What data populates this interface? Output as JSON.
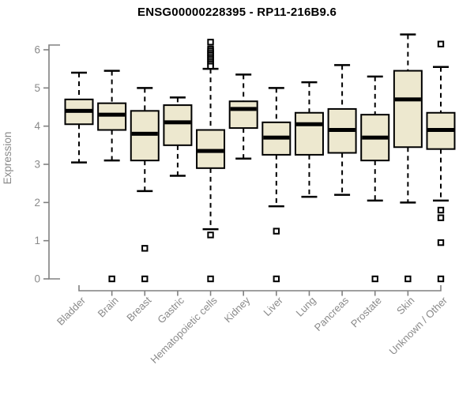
{
  "chart_data": {
    "type": "boxplot",
    "title": "ENSG00000228395 - RP11-216B9.6",
    "ylabel": "Expression",
    "xlabel": "",
    "ylim": [
      0,
      6
    ],
    "yticks": [
      "0",
      "1",
      "2",
      "3",
      "4",
      "5",
      "6"
    ],
    "grid": false,
    "legend": "none",
    "categories": [
      "Bladder",
      "Brain",
      "Breast",
      "Gastric",
      "Hematopoietic cells",
      "Kidney",
      "Liver",
      "Lung",
      "Pancreas",
      "Prostate",
      "Skin",
      "Unknown / Other"
    ],
    "series": [
      {
        "name": "Bladder",
        "whislo": 3.05,
        "q1": 4.05,
        "med": 4.4,
        "q3": 4.7,
        "whishi": 5.4,
        "outliers": []
      },
      {
        "name": "Brain",
        "whislo": 3.1,
        "q1": 3.9,
        "med": 4.3,
        "q3": 4.6,
        "whishi": 5.45,
        "outliers": [
          0
        ]
      },
      {
        "name": "Breast",
        "whislo": 2.3,
        "q1": 3.1,
        "med": 3.8,
        "q3": 4.4,
        "whishi": 5.0,
        "outliers": [
          0.8,
          0
        ]
      },
      {
        "name": "Gastric",
        "whislo": 2.7,
        "q1": 3.5,
        "med": 4.1,
        "q3": 4.55,
        "whishi": 4.75,
        "outliers": []
      },
      {
        "name": "Hematopoietic cells",
        "whislo": 1.3,
        "q1": 2.9,
        "med": 3.35,
        "q3": 3.9,
        "whishi": 5.5,
        "outliers": [
          6.2,
          6.02,
          5.97,
          5.92,
          5.87,
          5.82,
          5.77,
          5.72,
          5.67,
          5.62,
          5.57,
          1.15,
          0
        ]
      },
      {
        "name": "Kidney",
        "whislo": 3.15,
        "q1": 3.95,
        "med": 4.45,
        "q3": 4.65,
        "whishi": 5.35,
        "outliers": []
      },
      {
        "name": "Liver",
        "whislo": 1.9,
        "q1": 3.25,
        "med": 3.7,
        "q3": 4.1,
        "whishi": 5.0,
        "outliers": [
          1.25,
          0
        ]
      },
      {
        "name": "Lung",
        "whislo": 2.15,
        "q1": 3.25,
        "med": 4.05,
        "q3": 4.35,
        "whishi": 5.15,
        "outliers": []
      },
      {
        "name": "Pancreas",
        "whislo": 2.2,
        "q1": 3.3,
        "med": 3.9,
        "q3": 4.45,
        "whishi": 5.6,
        "outliers": []
      },
      {
        "name": "Prostate",
        "whislo": 2.05,
        "q1": 3.1,
        "med": 3.7,
        "q3": 4.3,
        "whishi": 5.3,
        "outliers": [
          0
        ]
      },
      {
        "name": "Skin",
        "whislo": 2.0,
        "q1": 3.45,
        "med": 4.7,
        "q3": 5.45,
        "whishi": 6.4,
        "outliers": [
          0
        ]
      },
      {
        "name": "Unknown / Other",
        "whislo": 2.05,
        "q1": 3.4,
        "med": 3.9,
        "q3": 4.35,
        "whishi": 5.55,
        "outliers": [
          6.15,
          1.8,
          1.6,
          0.95,
          0
        ]
      }
    ],
    "colors": {
      "background": "#ffffff",
      "box_fill": "#EDE8CF",
      "box_border": "#000000",
      "median": "#000000",
      "whisker": "#000000",
      "outlier": "#000000",
      "axis": "#808080",
      "tick_label": "#8a8a8a",
      "title": "#000000"
    }
  }
}
